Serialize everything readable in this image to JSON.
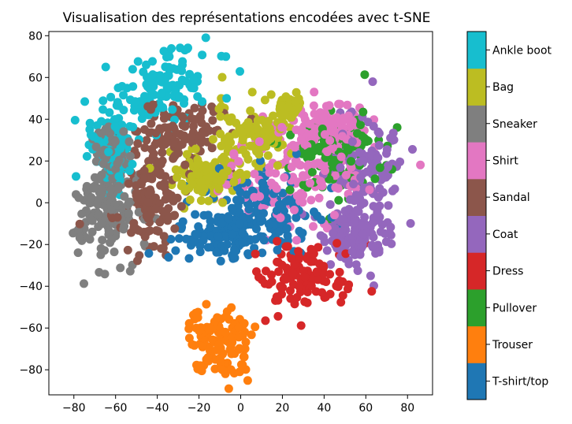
{
  "chart_data": {
    "type": "scatter",
    "title": "Visualisation des représentations encodées avec t-SNE",
    "xlabel": "",
    "ylabel": "",
    "xlim": [
      -92,
      92
    ],
    "ylim": [
      -92,
      82
    ],
    "x_ticks": [
      -80,
      -60,
      -40,
      -20,
      0,
      20,
      40,
      60,
      80
    ],
    "y_ticks": [
      -80,
      -60,
      -40,
      -20,
      0,
      20,
      40,
      60,
      80
    ],
    "grid": false,
    "colorbar": {
      "labels": [
        "T-shirt/top",
        "Trouser",
        "Pullover",
        "Dress",
        "Coat",
        "Sandal",
        "Shirt",
        "Sneaker",
        "Bag",
        "Ankle boot"
      ],
      "colors": [
        "#1f77b4",
        "#ff7f0e",
        "#2ca02c",
        "#d62728",
        "#9467bd",
        "#8c564b",
        "#e377c2",
        "#7f7f7f",
        "#bcbd22",
        "#17becf"
      ]
    },
    "clusters": [
      {
        "label": "Ankle boot",
        "color": "#17becf",
        "center": [
          -38,
          55
        ],
        "spread": [
          13,
          8
        ],
        "rotation": 25
      },
      {
        "label": "Ankle boot",
        "color": "#17becf",
        "center": [
          -62,
          28
        ],
        "spread": [
          5,
          10
        ],
        "rotation": 0
      },
      {
        "label": "Sandal",
        "color": "#8c564b",
        "center": [
          -33,
          30
        ],
        "spread": [
          12,
          9
        ],
        "rotation": 20
      },
      {
        "label": "Sandal",
        "color": "#8c564b",
        "center": [
          -45,
          0
        ],
        "spread": [
          8,
          12
        ],
        "rotation": 0
      },
      {
        "label": "Sneaker",
        "color": "#7f7f7f",
        "center": [
          -65,
          -5
        ],
        "spread": [
          9,
          10
        ],
        "rotation": 0
      },
      {
        "label": "Sneaker",
        "color": "#7f7f7f",
        "center": [
          -62,
          22
        ],
        "spread": [
          4,
          7
        ],
        "rotation": 0
      },
      {
        "label": "Bag",
        "color": "#bcbd22",
        "center": [
          5,
          32
        ],
        "spread": [
          9,
          8
        ],
        "rotation": 0
      },
      {
        "label": "Bag",
        "color": "#bcbd22",
        "center": [
          -17,
          12
        ],
        "spread": [
          8,
          5
        ],
        "rotation": 0
      },
      {
        "label": "Bag",
        "color": "#bcbd22",
        "center": [
          24,
          46
        ],
        "spread": [
          2,
          2
        ],
        "rotation": 0
      },
      {
        "label": "Trouser",
        "color": "#ff7f0e",
        "center": [
          -10,
          -68
        ],
        "spread": [
          8,
          8
        ],
        "rotation": 0
      },
      {
        "label": "T-shirt/top",
        "color": "#1f77b4",
        "center": [
          -8,
          -15
        ],
        "spread": [
          12,
          8
        ],
        "rotation": 0
      },
      {
        "label": "T-shirt/top",
        "color": "#1f77b4",
        "center": [
          15,
          -5
        ],
        "spread": [
          12,
          10
        ],
        "rotation": 0
      },
      {
        "label": "Dress",
        "color": "#d62728",
        "center": [
          30,
          -35
        ],
        "spread": [
          12,
          9
        ],
        "rotation": 0
      },
      {
        "label": "Shirt",
        "color": "#e377c2",
        "center": [
          25,
          10
        ],
        "spread": [
          16,
          10
        ],
        "rotation": 0
      },
      {
        "label": "Pullover",
        "color": "#2ca02c",
        "center": [
          45,
          25
        ],
        "spread": [
          12,
          11
        ],
        "rotation": 0
      },
      {
        "label": "Coat",
        "color": "#9467bd",
        "center": [
          60,
          15
        ],
        "spread": [
          9,
          12
        ],
        "rotation": 0
      },
      {
        "label": "Coat",
        "color": "#9467bd",
        "center": [
          55,
          -15
        ],
        "spread": [
          8,
          8
        ],
        "rotation": 0
      },
      {
        "label": "Shirt",
        "color": "#e377c2",
        "center": [
          40,
          35
        ],
        "spread": [
          10,
          7
        ],
        "rotation": 0
      }
    ]
  }
}
